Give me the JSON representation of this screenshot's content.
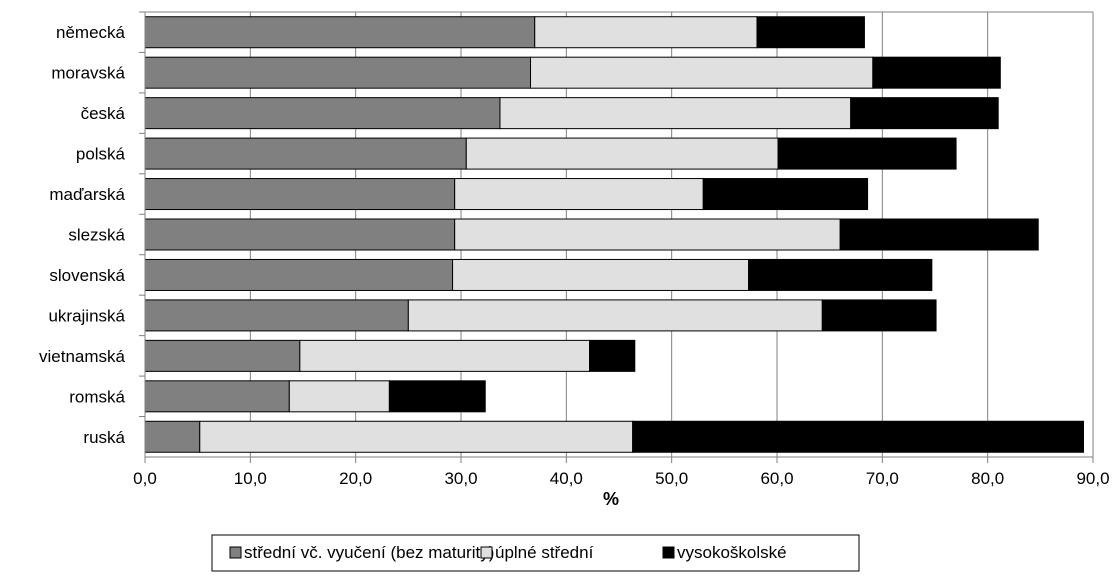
{
  "chart_data": {
    "type": "bar",
    "orientation": "horizontal",
    "stacked": true,
    "categories": [
      "německá",
      "moravská",
      "česká",
      "polská",
      "maďarská",
      "slezská",
      "slovenská",
      "ukrajinská",
      "vietnamská",
      "romská",
      "ruská"
    ],
    "series": [
      {
        "name": "střední vč. vyučení (bez maturity)",
        "color": "#808080",
        "values": [
          37.0,
          36.6,
          33.7,
          30.5,
          29.4,
          29.4,
          29.2,
          25.0,
          14.7,
          13.7,
          5.2
        ]
      },
      {
        "name": "úplné střední",
        "color": "#e0e0e0",
        "values": [
          21.1,
          32.5,
          33.3,
          29.6,
          23.6,
          36.6,
          28.1,
          39.3,
          27.5,
          9.5,
          41.1
        ]
      },
      {
        "name": "vysokoškolské",
        "color": "#000000",
        "values": [
          10.2,
          12.1,
          14.0,
          16.9,
          15.6,
          18.8,
          17.4,
          10.8,
          4.3,
          9.1,
          42.8
        ]
      }
    ],
    "xlabel": "%",
    "xlim": [
      0,
      90
    ],
    "xticks": [
      "0,0",
      "10,0",
      "20,0",
      "30,0",
      "40,0",
      "50,0",
      "60,0",
      "70,0",
      "80,0",
      "90,0"
    ],
    "grid": true,
    "legend_position": "bottom",
    "legend_labels": [
      "střední vč. vyučení (bez maturity)",
      "úplné střední",
      "vysokoškolské"
    ]
  }
}
